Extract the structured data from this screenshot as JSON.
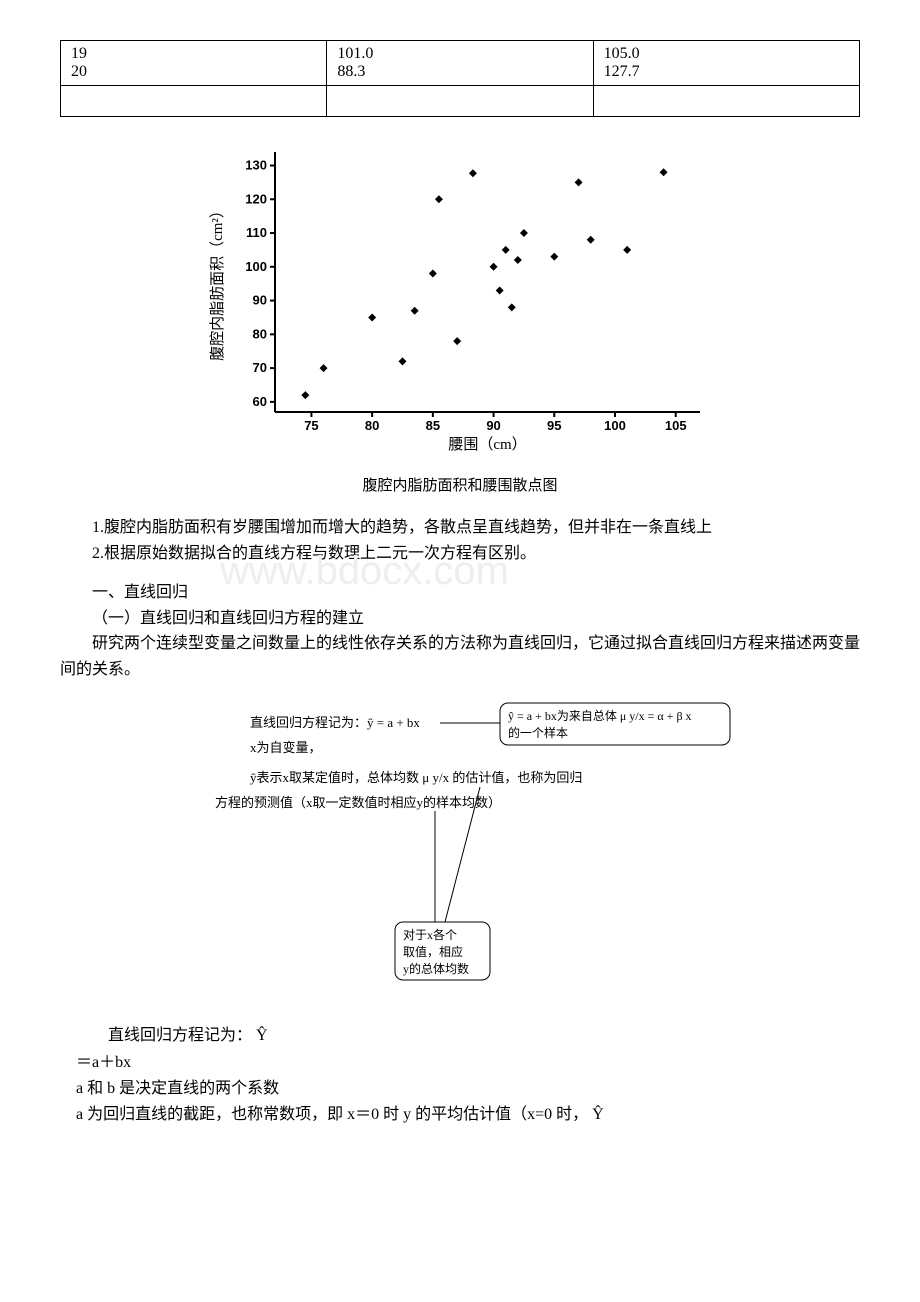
{
  "table": {
    "rows": [
      [
        "19",
        "101.0",
        "105.0"
      ],
      [
        "20",
        "88.3",
        "127.7"
      ]
    ]
  },
  "scatter_chart": {
    "type": "scatter",
    "x_label": "腰围（cm）",
    "y_label": "腹腔内脂肪面积（cm²）",
    "caption": "腹腔内脂肪面积和腰围散点图",
    "xlim": [
      72,
      107
    ],
    "ylim": [
      57,
      134
    ],
    "xticks": [
      75,
      80,
      85,
      90,
      95,
      100,
      105
    ],
    "yticks": [
      60,
      70,
      80,
      90,
      100,
      110,
      120,
      130
    ],
    "axis_fontsize": 13,
    "label_fontsize": 15,
    "marker": "diamond",
    "marker_size": 6,
    "marker_color": "#000000",
    "axis_color": "#000000",
    "background_color": "#ffffff",
    "points_x": [
      74.5,
      76.0,
      80.0,
      82.5,
      83.5,
      85.0,
      85.5,
      87.0,
      88.3,
      90.0,
      90.5,
      91.0,
      91.5,
      92.0,
      92.5,
      95.0,
      97.0,
      98.0,
      101.0,
      104.0
    ],
    "points_y": [
      62.0,
      70.0,
      85.0,
      72.0,
      87.0,
      98.0,
      120.0,
      78.0,
      127.7,
      100.0,
      93.0,
      105.0,
      88.0,
      102.0,
      110.0,
      103.0,
      125.0,
      108.0,
      105.0,
      128.0
    ]
  },
  "text": {
    "obs1": "1.腹腔内脂肪面积有岁腰围增加而增大的趋势，各散点呈直线趋势，但并非在一条直线上",
    "obs2": "2.根据原始数据拟合的直线方程与数理上二元一次方程有区别。",
    "sec1": "一、直线回归",
    "sec1_1": "（一）直线回归和直线回归方程的建立",
    "sec1_body": "研究两个连续型变量之间数量上的线性依存关系的方法称为直线回归，它通过拟合直线回归方程来描述两变量间的关系。"
  },
  "diagram": {
    "line1_left": "直线回归方程记为：ŷ = a + bx",
    "callout1": "ŷ = a + bx为来自总体 μ y/x = α + β x 的一个样本",
    "line2": "x为自变量，",
    "line3": "ŷ表示x取某定值时，总体均数 μ y/x 的估计值，也称为回归",
    "line4": "方程的预测值（x取一定数值时相应y的样本均数）",
    "callout2": "对于x各个取值，相应y的总体均数",
    "font_color": "#000000",
    "callout_border": "#000000",
    "callout_fill": "#ffffff",
    "callout_radius": 8,
    "diagram_fontsize": 13
  },
  "tail": {
    "eq_label": "直线回归方程记为：",
    "eq_symbol": "Ŷ",
    "eq_cont": "＝a＋bx",
    "line_ab": "a 和 b 是决定直线的两个系数",
    "line_a": "a 为回归直线的截距，也称常数项，即 x＝0 时 y 的平均估计值（x=0 时，",
    "line_a_end": "Ŷ"
  },
  "watermark": "www.bdocx.com"
}
